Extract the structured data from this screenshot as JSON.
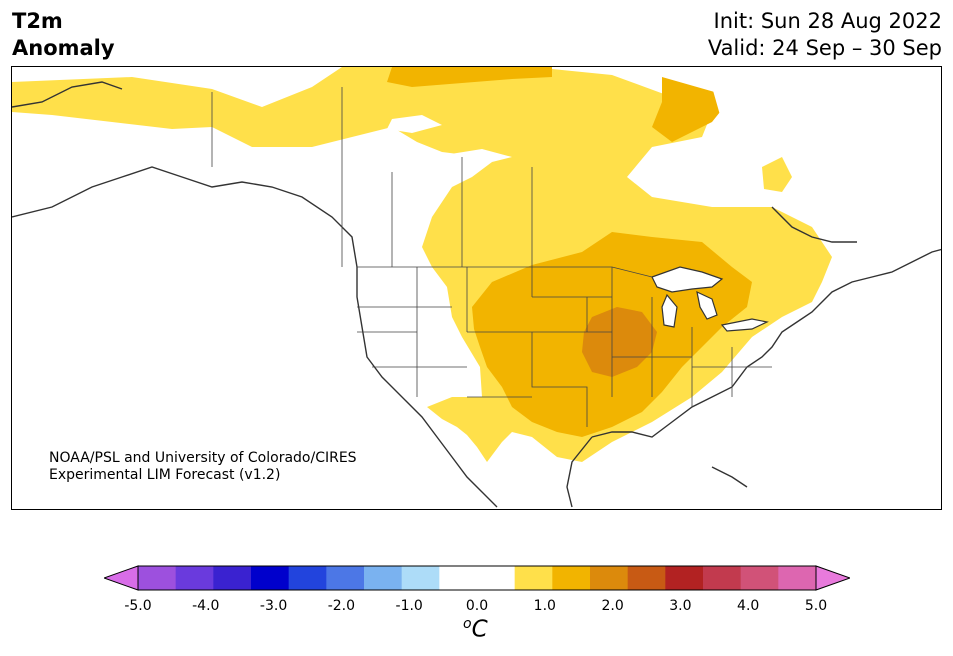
{
  "title": {
    "line1": "T2m",
    "line2": "Anomaly"
  },
  "forecast": {
    "init": "Init: Sun 28 Aug 2022",
    "valid": "Valid: 24 Sep – 30 Sep"
  },
  "credit": {
    "line1": "NOAA/PSL and University of Colorado/CIRES",
    "line2": "Experimental LIM Forecast (v1.2)"
  },
  "colorbar": {
    "ticks": [
      "-5.0",
      "-4.0",
      "-3.0",
      "-2.0",
      "-1.0",
      "0.0",
      "1.0",
      "2.0",
      "3.0",
      "4.0",
      "5.0"
    ],
    "units_symbol": "o",
    "units_letter": "C",
    "colors": [
      "#d86de8",
      "#9d50de",
      "#6a3add",
      "#3a22d0",
      "#0000cc",
      "#2244dd",
      "#4c77e6",
      "#7ab2f0",
      "#addcf8",
      "#ffffff",
      "#ffffff",
      "#ffe04a",
      "#f2b400",
      "#dc8a0c",
      "#c85a14",
      "#b22222",
      "#c23a4e",
      "#d15278",
      "#dd66b0",
      "#e87adc"
    ]
  },
  "map_colors": {
    "anomaly_0_5_to_1_0": "#ffe04a",
    "anomaly_1_0_to_1_5": "#f2b400",
    "anomaly_1_5_to_2_0": "#dc8a0c",
    "coastline": "#333333",
    "borders": "#444444"
  }
}
